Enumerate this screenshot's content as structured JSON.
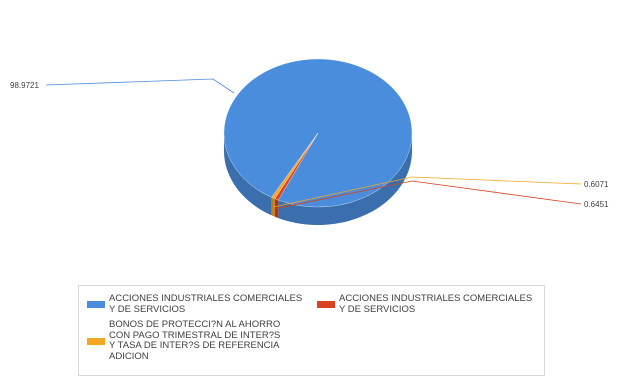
{
  "chart_data": {
    "type": "pie",
    "title": "",
    "slices": [
      {
        "label": "ACCIONES INDUSTRIALES COMERCIALES\nY DE SERVICIOS",
        "value": 98.9721,
        "value_label": "98.9721",
        "color": "#4a8ddc"
      },
      {
        "label": "ACCIONES INDUSTRIALES COMERCIALES\nY DE SERVICIOS",
        "value": 0.6451,
        "value_label": "0.6451",
        "color": "#d9431f"
      },
      {
        "label": "BONOS DE PROTECCI?N AL AHORRO\nCON PAGO TRIMESTRAL DE INTER?S\nY TASA DE INTER?S DE REFERENCIA\nADICION",
        "value": 0.6071,
        "value_label": "0.6071",
        "color": "#f5a623"
      }
    ],
    "legend_position": "bottom",
    "style": "3d-pie"
  }
}
